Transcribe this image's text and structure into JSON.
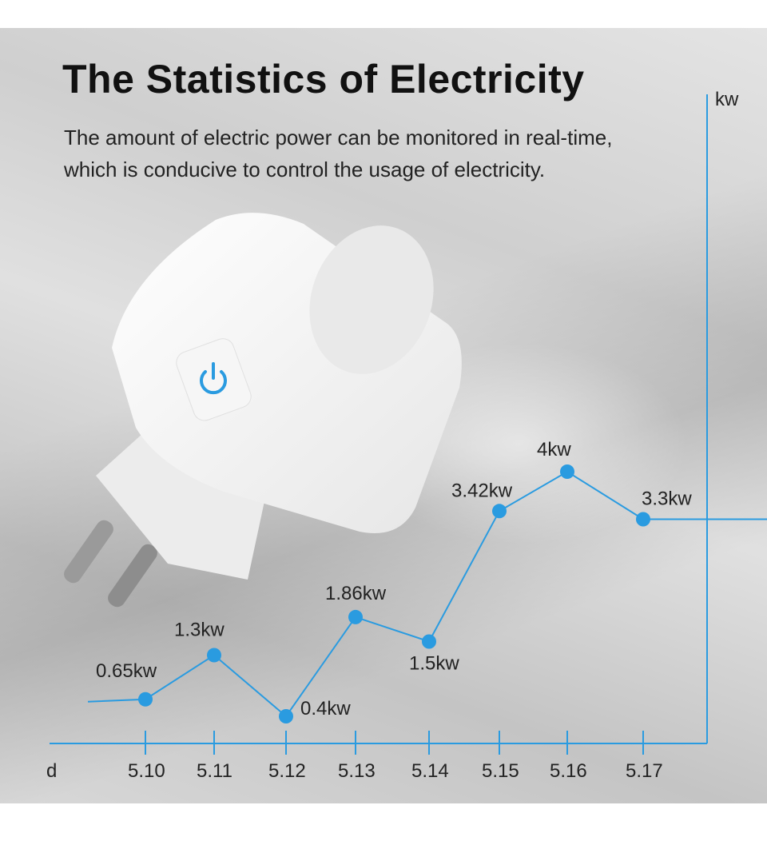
{
  "header": {
    "title": "The Statistics of Electricity",
    "subtitle_line1": "The amount of electric power can be monitored in real-time,",
    "subtitle_line2": "which is conducive to control the usage of electricity."
  },
  "colors": {
    "accent": "#2a9be0",
    "text": "#222222"
  },
  "product_image": "smart-plug-with-power-button",
  "chart_data": {
    "type": "line",
    "xlabel": "d",
    "ylabel": "kw",
    "categories": [
      "5.10",
      "5.11",
      "5.12",
      "5.13",
      "5.14",
      "5.15",
      "5.16",
      "5.17"
    ],
    "values": [
      0.65,
      1.3,
      0.4,
      1.86,
      1.5,
      3.42,
      4,
      3.3
    ],
    "data_labels": [
      "0.65kw",
      "1.3kw",
      "0.4kw",
      "1.86kw",
      "1.5kw",
      "3.42kw",
      "4kw",
      "3.3kw"
    ],
    "grid": false,
    "legend": "none"
  }
}
